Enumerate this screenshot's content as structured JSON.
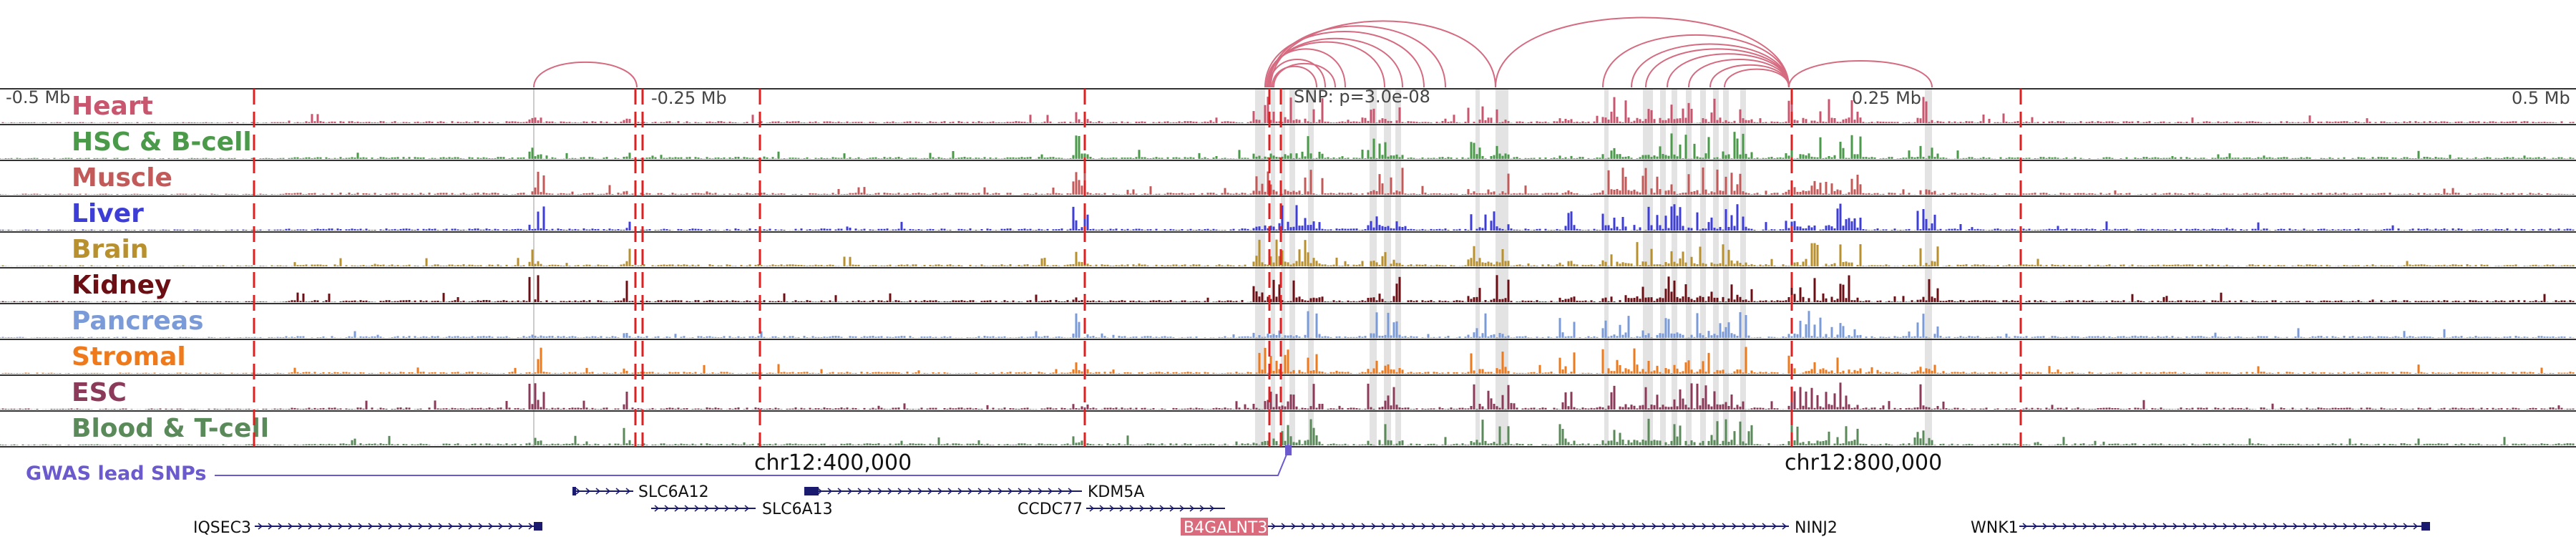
{
  "scale": {
    "left_label": "-0.5 Mb",
    "left_mid_label": "-0.25 Mb",
    "right_mid_label": "0.25 Mb",
    "right_label": "0.5 Mb",
    "snp_label": "SNP: p=3.0e-08"
  },
  "tracks": [
    {
      "id": "heart",
      "label": "Heart",
      "color": "#c8566e"
    },
    {
      "id": "hsc-b-cell",
      "label": "HSC & B-cell",
      "color": "#4a9a4a"
    },
    {
      "id": "muscle",
      "label": "Muscle",
      "color": "#c25a5a"
    },
    {
      "id": "liver",
      "label": "Liver",
      "color": "#3d3dd8"
    },
    {
      "id": "brain",
      "label": "Brain",
      "color": "#b8902e"
    },
    {
      "id": "kidney",
      "label": "Kidney",
      "color": "#6b0f14"
    },
    {
      "id": "pancreas",
      "label": "Pancreas",
      "color": "#7b9bd8"
    },
    {
      "id": "stromal",
      "label": "Stromal",
      "color": "#ef7a1c"
    },
    {
      "id": "esc",
      "label": "ESC",
      "color": "#8b3a5a"
    },
    {
      "id": "blood-t-cell",
      "label": "Blood & T-cell",
      "color": "#5a8a5a"
    }
  ],
  "coords": {
    "left": "chr12:400,000",
    "right": "chr12:800,000"
  },
  "gwas_label": "GWAS lead SNPs",
  "genes": [
    {
      "name": "SLC6A12",
      "highlight": false
    },
    {
      "name": "KDM5A",
      "highlight": false
    },
    {
      "name": "SLC6A13",
      "highlight": false
    },
    {
      "name": "CCDC77",
      "highlight": false
    },
    {
      "name": "IQSEC3",
      "highlight": false
    },
    {
      "name": "B4GALNT3",
      "highlight": true
    },
    {
      "name": "NINJ2",
      "highlight": false
    },
    {
      "name": "WNK1",
      "highlight": false
    }
  ],
  "colors": {
    "dashed_marker": "#e02020",
    "arc": "#d56b80",
    "gwas": "#6a5acd",
    "gene": "#1a1a6e",
    "gene_highlight_bg": "#d96b7d",
    "highlight_band": "#d9d9d9"
  }
}
